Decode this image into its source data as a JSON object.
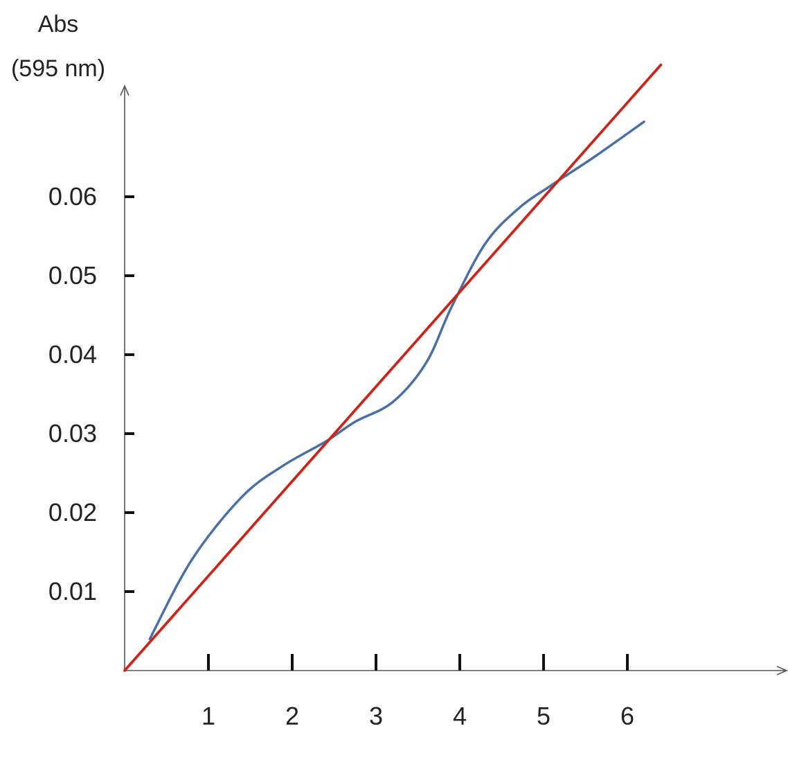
{
  "chart_data": {
    "type": "line",
    "title": "",
    "xlabel": "",
    "ylabel_line1": "Abs",
    "ylabel_line2": "(595 nm)",
    "xlim": [
      0,
      7.5
    ],
    "ylim": [
      0,
      0.07
    ],
    "x_ticks": [
      {
        "value": 1,
        "label": "1"
      },
      {
        "value": 2,
        "label": "2"
      },
      {
        "value": 3,
        "label": "3"
      },
      {
        "value": 4,
        "label": "4"
      },
      {
        "value": 5,
        "label": "5"
      },
      {
        "value": 6,
        "label": "6"
      }
    ],
    "y_ticks": [
      {
        "value": 0.01,
        "label": "0.01"
      },
      {
        "value": 0.02,
        "label": "0.02"
      },
      {
        "value": 0.03,
        "label": "0.03"
      },
      {
        "value": 0.04,
        "label": "0.04"
      },
      {
        "value": 0.05,
        "label": "0.05"
      },
      {
        "value": 0.06,
        "label": "0.06"
      }
    ],
    "grid": false,
    "legend": "none",
    "series": [
      {
        "color": "#4a6fa5",
        "smooth": true,
        "x": [
          0.3,
          0.8,
          1.4,
          1.9,
          2.4,
          2.75,
          3.2,
          3.6,
          3.9,
          4.3,
          4.7,
          5.1,
          5.6,
          6.2
        ],
        "y": [
          0.004,
          0.014,
          0.022,
          0.026,
          0.029,
          0.0315,
          0.034,
          0.039,
          0.046,
          0.054,
          0.0585,
          0.0615,
          0.065,
          0.0695
        ]
      },
      {
        "color": "#cc2418",
        "smooth": false,
        "x": [
          0,
          6.4
        ],
        "y": [
          0,
          0.0767
        ]
      }
    ]
  }
}
